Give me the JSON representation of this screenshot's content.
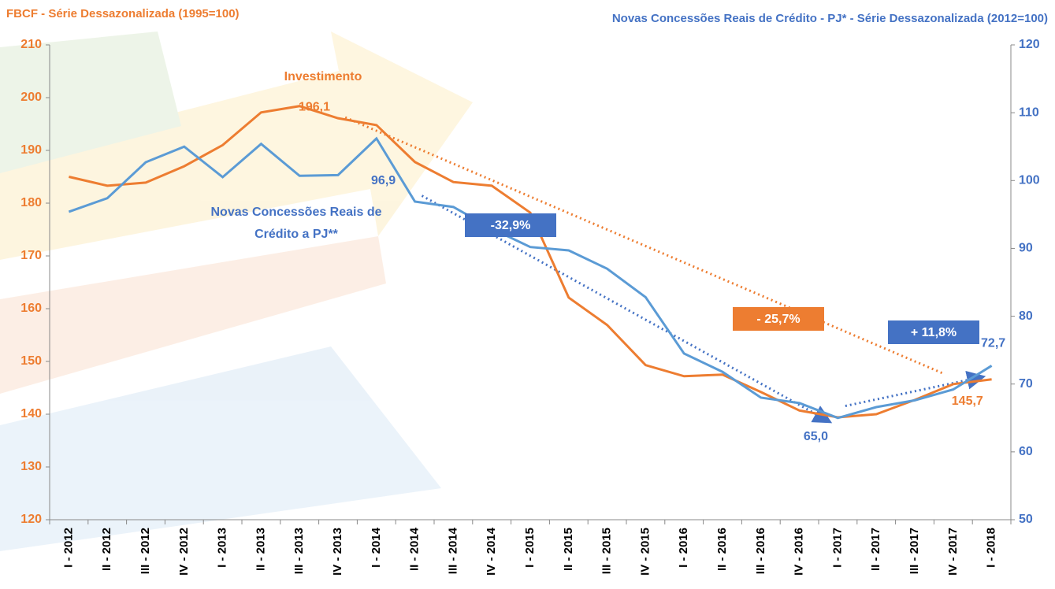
{
  "chart_data": {
    "type": "line",
    "y_title": "FBCF - Série Dessazonalizada (1995=100)",
    "y2_title": "Novas Concessões Reais de Crédito - PJ* - Série Dessazonalizada (2012=100)",
    "categories": [
      "I - 2012",
      "II - 2012",
      "III - 2012",
      "IV - 2012",
      "I - 2013",
      "II - 2013",
      "III - 2013",
      "IV - 2013",
      "I - 2014",
      "II - 2014",
      "III - 2014",
      "IV - 2014",
      "I - 2015",
      "II - 2015",
      "III - 2015",
      "IV - 2015",
      "I - 2016",
      "II - 2016",
      "III - 2016",
      "IV - 2016",
      "I - 2017",
      "II - 2017",
      "III - 2017",
      "IV - 2017",
      "I - 2018"
    ],
    "series": [
      {
        "name": "Investimento",
        "color": "#ed7d31",
        "axis": "y",
        "values": [
          185,
          183.3,
          183.9,
          187,
          191,
          197.2,
          198.4,
          196.1,
          194.8,
          187.8,
          184,
          183.3,
          178.2,
          162.1,
          156.9,
          149.3,
          147.2,
          147.5,
          144.2,
          140.7,
          139.4,
          140,
          142.7,
          145.7,
          146.6
        ],
        "value_labels": [
          null,
          null,
          null,
          null,
          null,
          null,
          null,
          "196,1",
          null,
          null,
          null,
          null,
          null,
          null,
          null,
          null,
          null,
          null,
          null,
          null,
          null,
          null,
          null,
          "145,7",
          null
        ]
      },
      {
        "name": [
          "Novas Concessões Reais de",
          "Crédito a PJ**"
        ],
        "color": "#5b9bd5",
        "axis": "y2",
        "values": [
          95.4,
          97.4,
          102.7,
          105,
          100.5,
          105.4,
          100.7,
          100.8,
          106.2,
          96.9,
          96.1,
          92.9,
          90.2,
          89.7,
          87,
          82.8,
          74.5,
          71.8,
          68,
          67.2,
          65.0,
          66.6,
          67.6,
          69.2,
          72.7
        ],
        "value_labels": [
          null,
          null,
          null,
          null,
          null,
          null,
          null,
          null,
          null,
          "96,9",
          null,
          null,
          null,
          null,
          null,
          null,
          null,
          null,
          null,
          null,
          "65,0",
          null,
          null,
          null,
          "72,7"
        ]
      }
    ],
    "change_labels": [
      {
        "text": "-32,9%",
        "color": "#4472c4"
      },
      {
        "text": "- 25,7%",
        "color": "#ed7d31"
      },
      {
        "text": "+ 11,8%",
        "color": "#4472c4"
      }
    ],
    "ylim": [
      120,
      210
    ],
    "yticks": [
      120,
      130,
      140,
      150,
      160,
      170,
      180,
      190,
      200,
      210
    ],
    "y2lim": [
      50,
      120
    ],
    "y2ticks": [
      50,
      60,
      70,
      80,
      90,
      100,
      110,
      120
    ],
    "y_color": "#ed7d31",
    "y2_color": "#4472c4"
  }
}
